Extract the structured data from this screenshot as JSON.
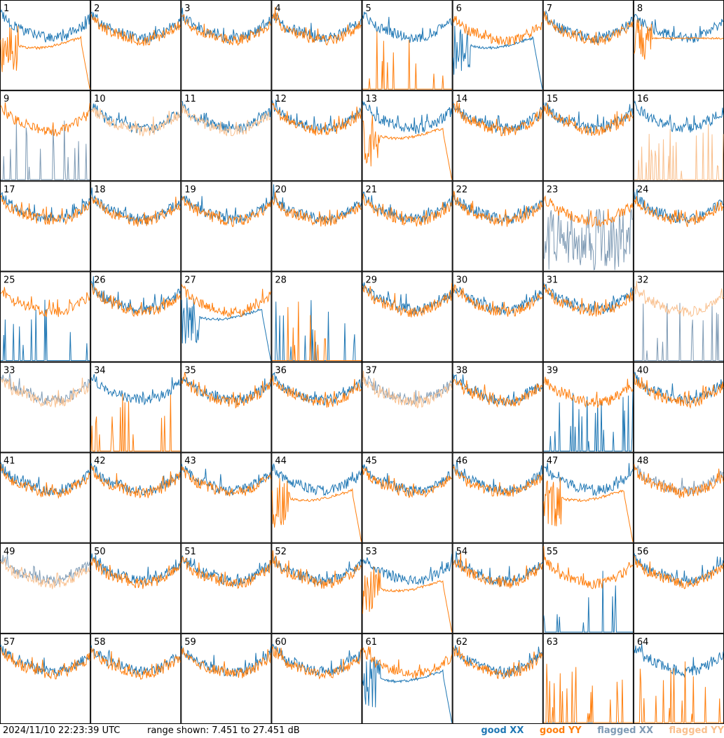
{
  "footer": {
    "timestamp": "2024/11/10 22:23:39 UTC",
    "range_prefix": "range shown:",
    "range_low": 7.451,
    "range_high": 27.451,
    "range_unit": "dB"
  },
  "legend": {
    "good_xx": "good XX",
    "good_yy": "good YY",
    "flagged_xx": "flagged XX",
    "flagged_yy": "flagged YY"
  },
  "colors": {
    "good_xx": "#1f77b4",
    "good_yy": "#ff7f0e",
    "flagged_xx": "#7f9bb5",
    "flagged_yy": "#f9c08e"
  },
  "chart_data": {
    "type": "line",
    "ylim": [
      7.451,
      27.451
    ],
    "grid_rows": 8,
    "grid_cols": 8,
    "tiles": [
      {
        "label": "1",
        "xx": "good",
        "yy": "good",
        "xx_shape": "normal",
        "yy_shape": "lowtail"
      },
      {
        "label": "2",
        "xx": "good",
        "yy": "good",
        "xx_shape": "normal",
        "yy_shape": "normal"
      },
      {
        "label": "3",
        "xx": "good",
        "yy": "good",
        "xx_shape": "normal",
        "yy_shape": "normal"
      },
      {
        "label": "4",
        "xx": "good",
        "yy": "good",
        "xx_shape": "normal",
        "yy_shape": "normal"
      },
      {
        "label": "5",
        "xx": "good",
        "yy": "good",
        "xx_shape": "normal",
        "yy_shape": "spikes"
      },
      {
        "label": "6",
        "xx": "good",
        "yy": "good",
        "xx_shape": "lowtail",
        "yy_shape": "normal"
      },
      {
        "label": "7",
        "xx": "good",
        "yy": "good",
        "xx_shape": "normal",
        "yy_shape": "normal"
      },
      {
        "label": "8",
        "xx": "good",
        "yy": "good",
        "xx_shape": "normal",
        "yy_shape": "flat"
      },
      {
        "label": "9",
        "xx": "flagged",
        "yy": "good",
        "xx_shape": "spikes",
        "yy_shape": "normal"
      },
      {
        "label": "10",
        "xx": "good",
        "yy": "flagged",
        "xx_shape": "normal",
        "yy_shape": "normal"
      },
      {
        "label": "11",
        "xx": "good",
        "yy": "flagged",
        "xx_shape": "normal",
        "yy_shape": "normal"
      },
      {
        "label": "12",
        "xx": "good",
        "yy": "good",
        "xx_shape": "normal",
        "yy_shape": "normal"
      },
      {
        "label": "13",
        "xx": "good",
        "yy": "good",
        "xx_shape": "normal",
        "yy_shape": "lowtail"
      },
      {
        "label": "14",
        "xx": "good",
        "yy": "good",
        "xx_shape": "normal",
        "yy_shape": "normal"
      },
      {
        "label": "15",
        "xx": "good",
        "yy": "good",
        "xx_shape": "normal",
        "yy_shape": "normal"
      },
      {
        "label": "16",
        "xx": "good",
        "yy": "flagged",
        "xx_shape": "normal",
        "yy_shape": "spikes"
      },
      {
        "label": "17",
        "xx": "good",
        "yy": "good",
        "xx_shape": "normal",
        "yy_shape": "normal"
      },
      {
        "label": "18",
        "xx": "good",
        "yy": "good",
        "xx_shape": "normal",
        "yy_shape": "normal"
      },
      {
        "label": "19",
        "xx": "good",
        "yy": "good",
        "xx_shape": "normal",
        "yy_shape": "normal"
      },
      {
        "label": "20",
        "xx": "good",
        "yy": "good",
        "xx_shape": "normal",
        "yy_shape": "normal"
      },
      {
        "label": "21",
        "xx": "good",
        "yy": "good",
        "xx_shape": "normal",
        "yy_shape": "normal"
      },
      {
        "label": "22",
        "xx": "good",
        "yy": "good",
        "xx_shape": "normal",
        "yy_shape": "normal"
      },
      {
        "label": "23",
        "xx": "flagged",
        "yy": "good",
        "xx_shape": "noisy",
        "yy_shape": "normal"
      },
      {
        "label": "24",
        "xx": "good",
        "yy": "good",
        "xx_shape": "normal",
        "yy_shape": "normal"
      },
      {
        "label": "25",
        "xx": "good",
        "yy": "good",
        "xx_shape": "spikes",
        "yy_shape": "normal"
      },
      {
        "label": "26",
        "xx": "good",
        "yy": "good",
        "xx_shape": "normal",
        "yy_shape": "normal"
      },
      {
        "label": "27",
        "xx": "good",
        "yy": "good",
        "xx_shape": "lowtail",
        "yy_shape": "normal"
      },
      {
        "label": "28",
        "xx": "good",
        "yy": "good",
        "xx_shape": "spikes",
        "yy_shape": "spikes"
      },
      {
        "label": "29",
        "xx": "good",
        "yy": "good",
        "xx_shape": "normal",
        "yy_shape": "normal"
      },
      {
        "label": "30",
        "xx": "good",
        "yy": "good",
        "xx_shape": "normal",
        "yy_shape": "normal"
      },
      {
        "label": "31",
        "xx": "good",
        "yy": "good",
        "xx_shape": "normal",
        "yy_shape": "normal"
      },
      {
        "label": "32",
        "xx": "flagged",
        "yy": "flagged",
        "xx_shape": "spikes",
        "yy_shape": "normal"
      },
      {
        "label": "33",
        "xx": "flagged",
        "yy": "flagged",
        "xx_shape": "normal",
        "yy_shape": "normal"
      },
      {
        "label": "34",
        "xx": "good",
        "yy": "good",
        "xx_shape": "normal",
        "yy_shape": "spikes"
      },
      {
        "label": "35",
        "xx": "good",
        "yy": "good",
        "xx_shape": "normal",
        "yy_shape": "normal"
      },
      {
        "label": "36",
        "xx": "good",
        "yy": "good",
        "xx_shape": "normal",
        "yy_shape": "normal"
      },
      {
        "label": "37",
        "xx": "flagged",
        "yy": "flagged",
        "xx_shape": "normal",
        "yy_shape": "normal"
      },
      {
        "label": "38",
        "xx": "good",
        "yy": "good",
        "xx_shape": "normal",
        "yy_shape": "normal"
      },
      {
        "label": "39",
        "xx": "good",
        "yy": "good",
        "xx_shape": "spikes",
        "yy_shape": "normal"
      },
      {
        "label": "40",
        "xx": "good",
        "yy": "good",
        "xx_shape": "normal",
        "yy_shape": "normal"
      },
      {
        "label": "41",
        "xx": "good",
        "yy": "good",
        "xx_shape": "normal",
        "yy_shape": "normal"
      },
      {
        "label": "42",
        "xx": "good",
        "yy": "good",
        "xx_shape": "normal",
        "yy_shape": "normal"
      },
      {
        "label": "43",
        "xx": "good",
        "yy": "good",
        "xx_shape": "normal",
        "yy_shape": "normal"
      },
      {
        "label": "44",
        "xx": "good",
        "yy": "good",
        "xx_shape": "normal",
        "yy_shape": "lowtail"
      },
      {
        "label": "45",
        "xx": "good",
        "yy": "good",
        "xx_shape": "normal",
        "yy_shape": "normal"
      },
      {
        "label": "46",
        "xx": "good",
        "yy": "good",
        "xx_shape": "normal",
        "yy_shape": "normal"
      },
      {
        "label": "47",
        "xx": "good",
        "yy": "good",
        "xx_shape": "normal",
        "yy_shape": "lowtail"
      },
      {
        "label": "48",
        "xx": "flagged",
        "yy": "good",
        "xx_shape": "normal",
        "yy_shape": "normal"
      },
      {
        "label": "49",
        "xx": "flagged",
        "yy": "flagged",
        "xx_shape": "normal",
        "yy_shape": "normal"
      },
      {
        "label": "50",
        "xx": "good",
        "yy": "good",
        "xx_shape": "normal",
        "yy_shape": "normal"
      },
      {
        "label": "51",
        "xx": "good",
        "yy": "good",
        "xx_shape": "normal",
        "yy_shape": "normal"
      },
      {
        "label": "52",
        "xx": "good",
        "yy": "good",
        "xx_shape": "normal",
        "yy_shape": "normal"
      },
      {
        "label": "53",
        "xx": "good",
        "yy": "good",
        "xx_shape": "normal",
        "yy_shape": "lowtail"
      },
      {
        "label": "54",
        "xx": "good",
        "yy": "good",
        "xx_shape": "normal",
        "yy_shape": "normal"
      },
      {
        "label": "55",
        "xx": "good",
        "yy": "good",
        "xx_shape": "spikes",
        "yy_shape": "normal"
      },
      {
        "label": "56",
        "xx": "good",
        "yy": "good",
        "xx_shape": "normal",
        "yy_shape": "normal"
      },
      {
        "label": "57",
        "xx": "good",
        "yy": "good",
        "xx_shape": "normal",
        "yy_shape": "normal"
      },
      {
        "label": "58",
        "xx": "good",
        "yy": "good",
        "xx_shape": "normal",
        "yy_shape": "normal"
      },
      {
        "label": "59",
        "xx": "good",
        "yy": "good",
        "xx_shape": "normal",
        "yy_shape": "normal"
      },
      {
        "label": "60",
        "xx": "good",
        "yy": "good",
        "xx_shape": "normal",
        "yy_shape": "normal"
      },
      {
        "label": "61",
        "xx": "good",
        "yy": "good",
        "xx_shape": "lowtail",
        "yy_shape": "normal"
      },
      {
        "label": "62",
        "xx": "good",
        "yy": "good",
        "xx_shape": "normal",
        "yy_shape": "normal"
      },
      {
        "label": "63",
        "xx": "good",
        "yy": "good",
        "xx_shape": "none",
        "yy_shape": "spikes"
      },
      {
        "label": "64",
        "xx": "good",
        "yy": "good",
        "xx_shape": "normal",
        "yy_shape": "spikes"
      }
    ]
  }
}
